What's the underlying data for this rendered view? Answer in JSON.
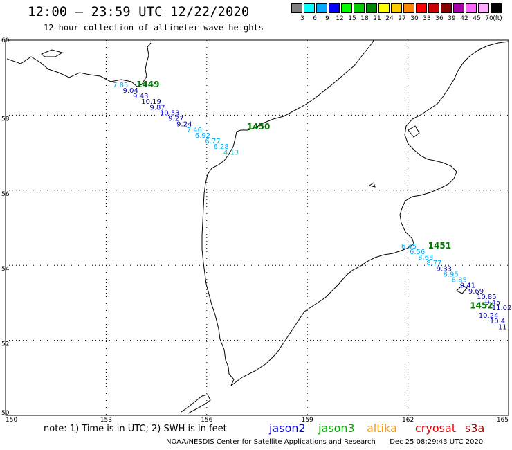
{
  "header": {
    "title": "12:00 – 23:59 UTC 12/22/2020",
    "subtitle": "12 hour collection of altimeter wave heights"
  },
  "legend": {
    "unit": "(ft)",
    "bins": [
      {
        "label": "3",
        "color": "#808080"
      },
      {
        "label": "6",
        "color": "#00ffff"
      },
      {
        "label": "9",
        "color": "#00aaff"
      },
      {
        "label": "12",
        "color": "#0000ff"
      },
      {
        "label": "15",
        "color": "#00ff00"
      },
      {
        "label": "18",
        "color": "#00cc00"
      },
      {
        "label": "21",
        "color": "#008800"
      },
      {
        "label": "24",
        "color": "#ffff00"
      },
      {
        "label": "27",
        "color": "#ffcc00"
      },
      {
        "label": "30",
        "color": "#ff8800"
      },
      {
        "label": "33",
        "color": "#ff0000"
      },
      {
        "label": "36",
        "color": "#cc0000"
      },
      {
        "label": "39",
        "color": "#880000"
      },
      {
        "label": "42",
        "color": "#aa00aa"
      },
      {
        "label": "45",
        "color": "#ff66ff"
      },
      {
        "label": "70",
        "color": "#ffaaff"
      },
      {
        "label": "",
        "color": "#000000"
      }
    ]
  },
  "map": {
    "lon_range": [
      150,
      165
    ],
    "lat_range": [
      50,
      60
    ],
    "lon_ticks": [
      "150",
      "153",
      "156",
      "159",
      "162",
      "165"
    ],
    "lat_ticks": [
      "60",
      "58",
      "56",
      "54",
      "52",
      "50"
    ],
    "grid": true
  },
  "passes": [
    {
      "id": "1449",
      "lon": 153.9,
      "lat": 58.75
    },
    {
      "id": "1450",
      "lon": 157.2,
      "lat": 57.62
    },
    {
      "id": "1451",
      "lon": 162.6,
      "lat": 54.45
    },
    {
      "id": "1452",
      "lon": 163.85,
      "lat": 52.85
    }
  ],
  "observations": [
    {
      "value": "7.85",
      "lon": 153.2,
      "lat": 58.75,
      "color": "#00aaff"
    },
    {
      "value": "9.04",
      "lon": 153.5,
      "lat": 58.6,
      "color": "#0000cc"
    },
    {
      "value": "9.43",
      "lon": 153.8,
      "lat": 58.45,
      "color": "#0000cc"
    },
    {
      "value": "10.19",
      "lon": 154.05,
      "lat": 58.3,
      "color": "#0000cc"
    },
    {
      "value": "9.87",
      "lon": 154.3,
      "lat": 58.15,
      "color": "#0000cc"
    },
    {
      "value": "10.53",
      "lon": 154.6,
      "lat": 58.0,
      "color": "#0000cc"
    },
    {
      "value": "9.27",
      "lon": 154.85,
      "lat": 57.85,
      "color": "#0000cc"
    },
    {
      "value": "9.24",
      "lon": 155.1,
      "lat": 57.7,
      "color": "#0000cc"
    },
    {
      "value": "7.46",
      "lon": 155.4,
      "lat": 57.55,
      "color": "#00aaff"
    },
    {
      "value": "6.92",
      "lon": 155.65,
      "lat": 57.4,
      "color": "#00aaff"
    },
    {
      "value": "6.77",
      "lon": 155.95,
      "lat": 57.25,
      "color": "#00aaff"
    },
    {
      "value": "6.28",
      "lon": 156.2,
      "lat": 57.1,
      "color": "#00aaff"
    },
    {
      "value": "4.13",
      "lon": 156.5,
      "lat": 56.95,
      "color": "#00cccc"
    },
    {
      "value": "6.45",
      "lon": 161.8,
      "lat": 54.45,
      "color": "#00aaff"
    },
    {
      "value": "6.56",
      "lon": 162.05,
      "lat": 54.3,
      "color": "#00aaff"
    },
    {
      "value": "8.63",
      "lon": 162.3,
      "lat": 54.15,
      "color": "#00aaff"
    },
    {
      "value": "8.77",
      "lon": 162.55,
      "lat": 54.0,
      "color": "#00aaff"
    },
    {
      "value": "9.33",
      "lon": 162.85,
      "lat": 53.85,
      "color": "#0000cc"
    },
    {
      "value": "8.95",
      "lon": 163.05,
      "lat": 53.7,
      "color": "#00aaff"
    },
    {
      "value": "8.85",
      "lon": 163.3,
      "lat": 53.55,
      "color": "#00aaff"
    },
    {
      "value": "9.41",
      "lon": 163.55,
      "lat": 53.4,
      "color": "#0000cc"
    },
    {
      "value": "9.69",
      "lon": 163.8,
      "lat": 53.25,
      "color": "#0000cc"
    },
    {
      "value": "10.85",
      "lon": 164.05,
      "lat": 53.1,
      "color": "#0000cc"
    },
    {
      "value": "9.45",
      "lon": 164.3,
      "lat": 52.95,
      "color": "#0000cc"
    },
    {
      "value": "11.02",
      "lon": 164.5,
      "lat": 52.8,
      "color": "#0000cc"
    },
    {
      "value": "10.24",
      "lon": 164.7,
      "lat": 52.6,
      "color": "#0000cc"
    },
    {
      "value": "10.4",
      "lon": 164.9,
      "lat": 52.45,
      "color": "#0000cc"
    },
    {
      "value": "11",
      "lon": 164.95,
      "lat": 52.3,
      "color": "#0000cc"
    }
  ],
  "footer": {
    "note": "note: 1) Time is in UTC; 2) SWH is in feet",
    "satellites": [
      {
        "name": "jason2",
        "color": "#0000ff"
      },
      {
        "name": "jason3",
        "color": "#00aa00"
      },
      {
        "name": "altika",
        "color": "#ff9900"
      },
      {
        "name": "cryosat",
        "color": "#dd0000"
      },
      {
        "name": "s3a",
        "color": "#aa0000"
      }
    ],
    "credit": "NOAA/NESDIS Center for Satellite Applications and Research",
    "generated": "Dec 25 08:29:43 UTC 2020"
  }
}
